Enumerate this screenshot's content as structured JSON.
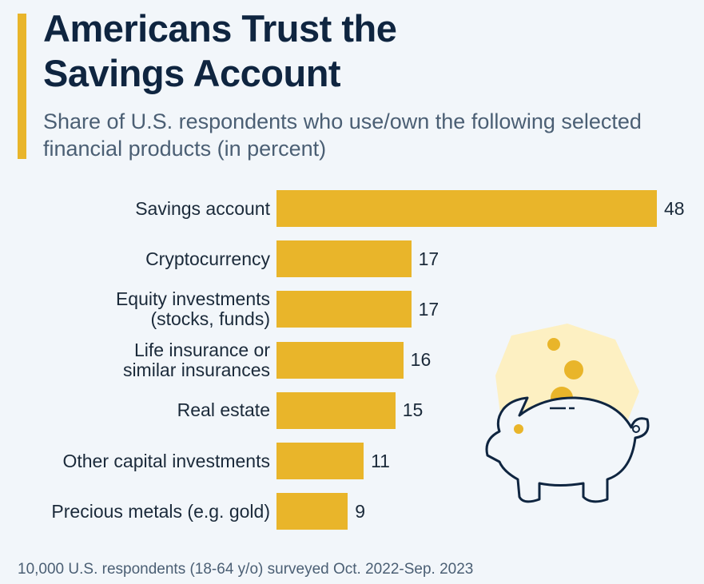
{
  "header": {
    "title_line1": "Americans Trust the",
    "title_line2": "Savings Account",
    "subtitle": "Share of U.S. respondents who use/own the following selected financial products (in percent)"
  },
  "footer": {
    "note": "10,000 U.S. respondents (18-64 y/o) surveyed Oct. 2022-Sep. 2023"
  },
  "colors": {
    "bar": "#e9b52a",
    "accent": "#e9b52a",
    "title": "#0f2540",
    "background": "#f2f6fa"
  },
  "illustration": {
    "icon": "piggy-bank-icon"
  },
  "chart_data": {
    "type": "bar",
    "orientation": "horizontal",
    "title": "Americans Trust the Savings Account",
    "subtitle": "Share of U.S. respondents who use/own the following selected financial products (in percent)",
    "categories": [
      "Savings account",
      "Cryptocurrency",
      "Equity investments\n(stocks, funds)",
      "Life insurance or\nsimilar insurances",
      "Real estate",
      "Other capital investments",
      "Precious metals (e.g. gold)"
    ],
    "values": [
      48,
      17,
      17,
      16,
      15,
      11,
      9
    ],
    "value_labels": [
      "48",
      "17",
      "17",
      "16",
      "15",
      "11",
      "9"
    ],
    "xlabel": "",
    "ylabel": "",
    "xlim": [
      0,
      48
    ],
    "grid": false,
    "legend": "none",
    "unit": "percent"
  }
}
